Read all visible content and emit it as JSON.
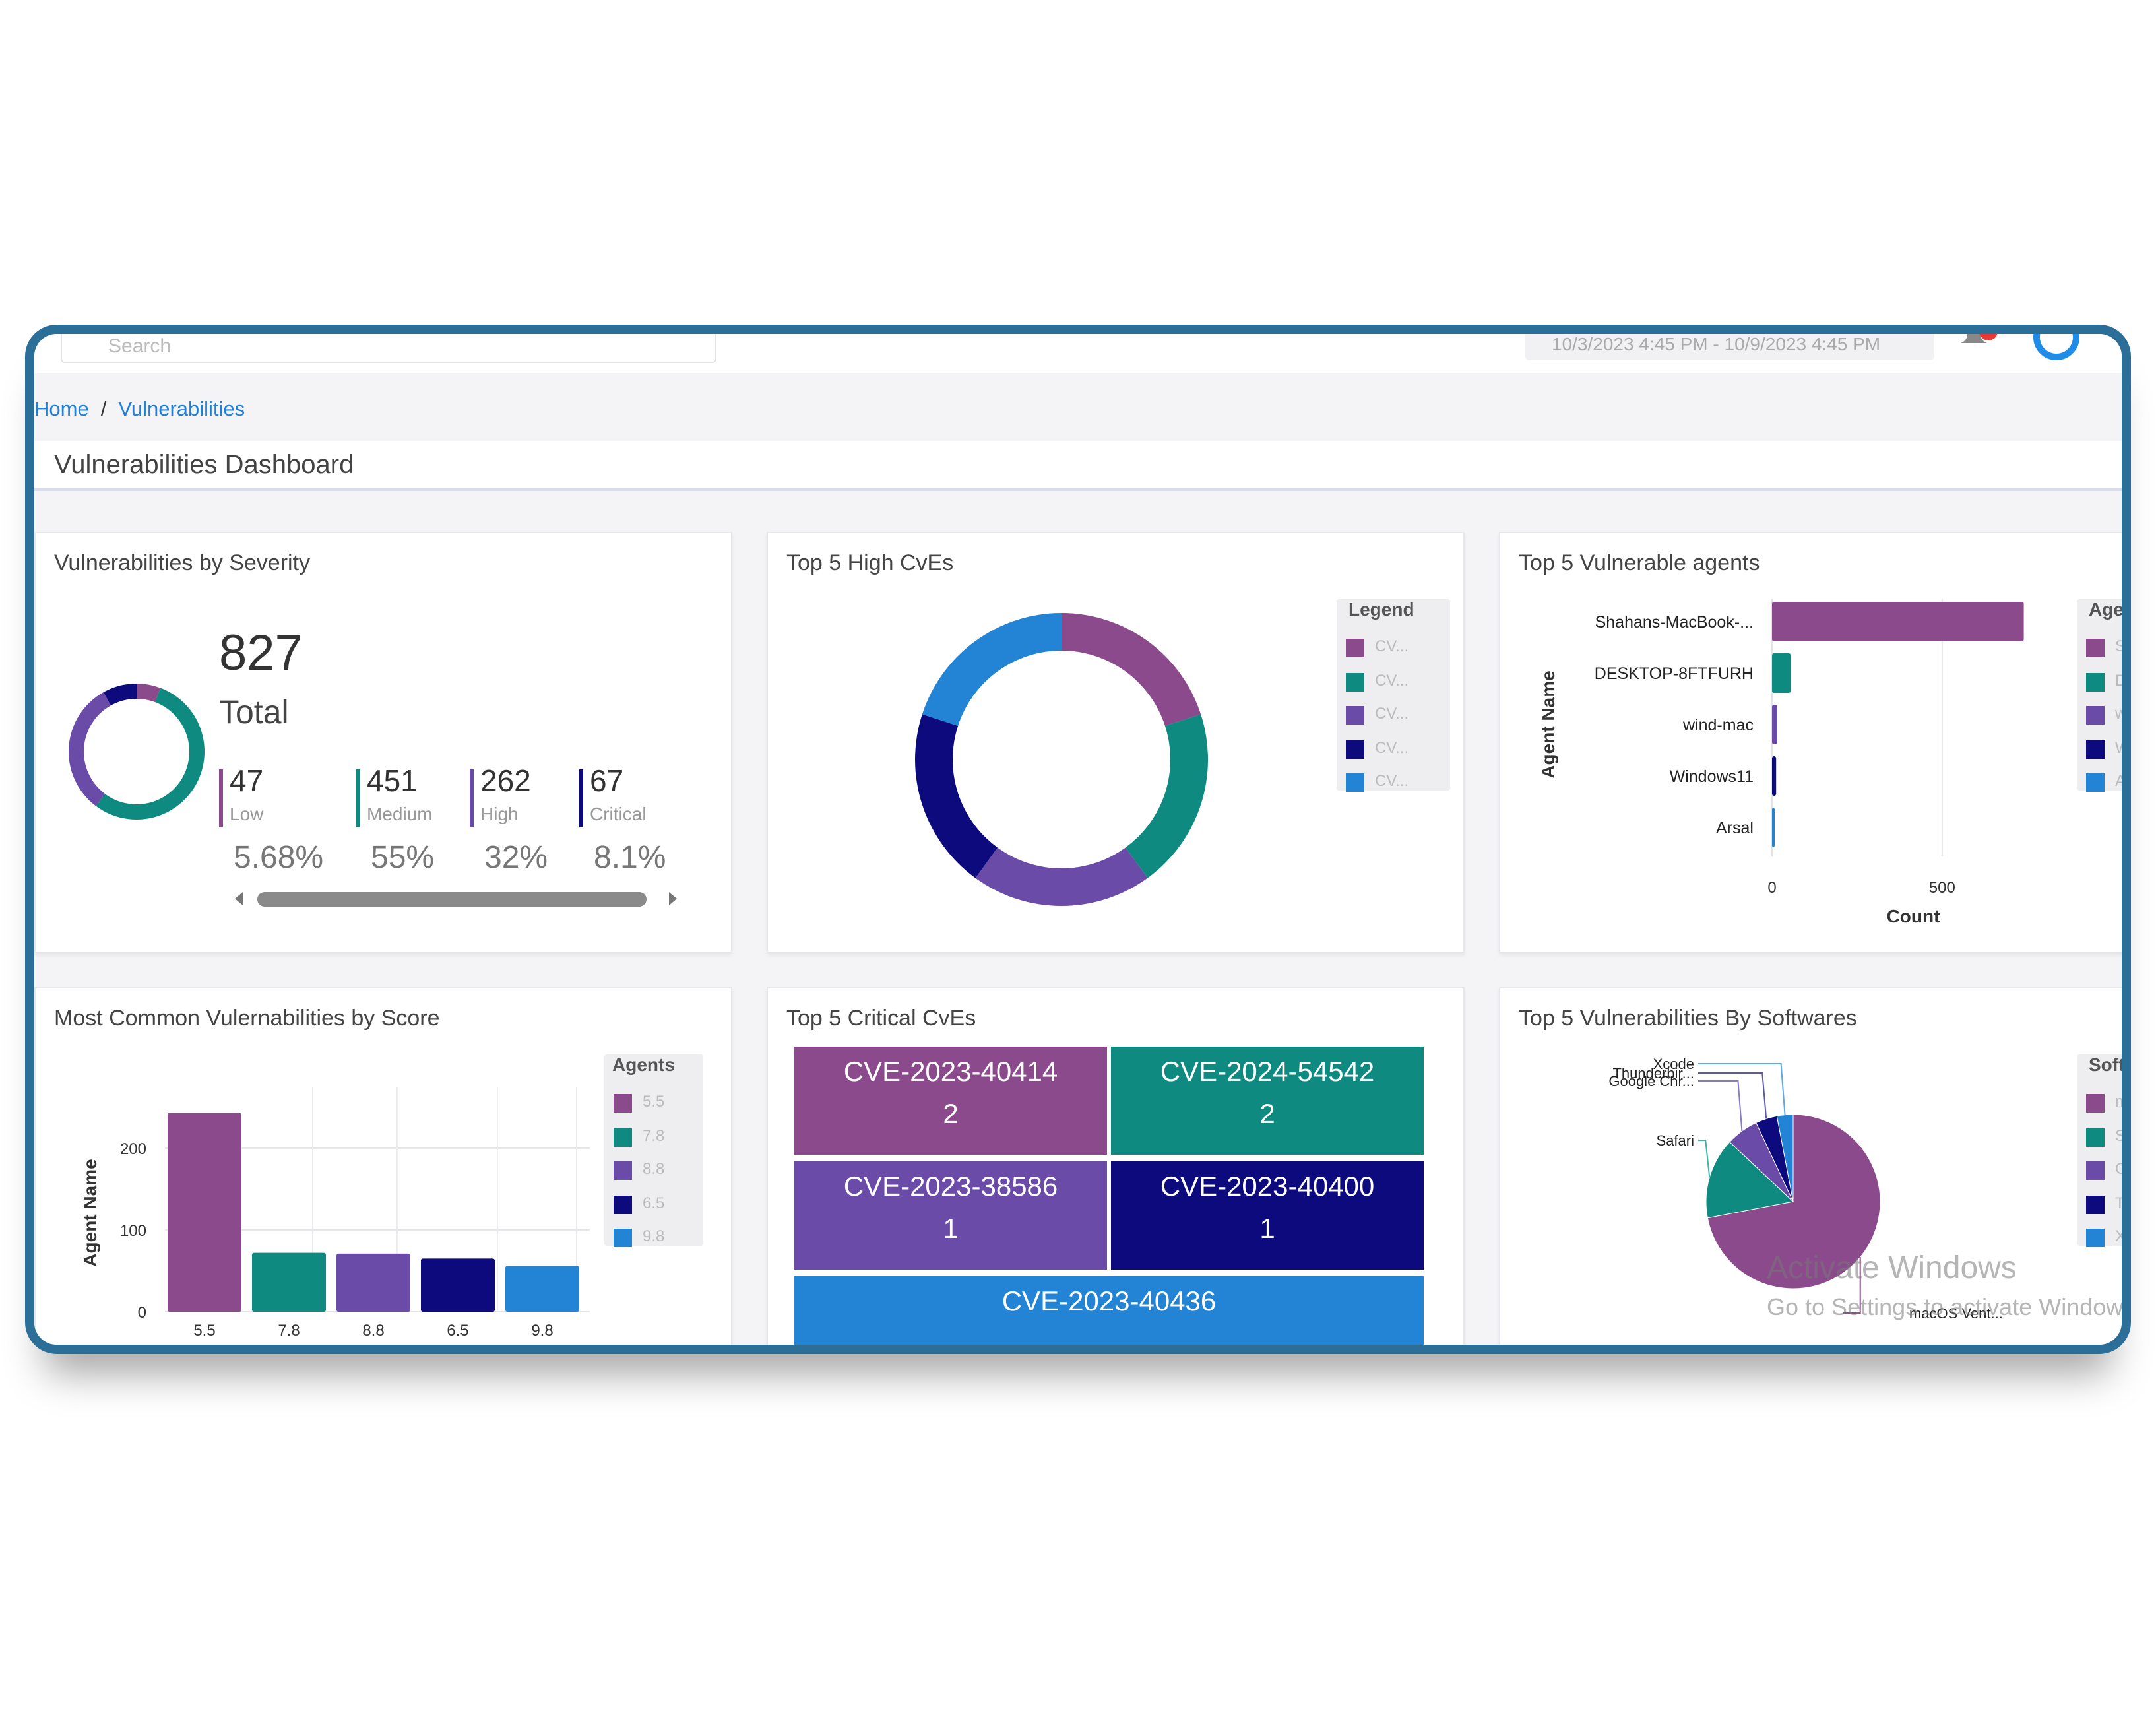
{
  "topbar": {
    "search_placeholder": "Search",
    "date_range": "10/3/2023 4:45 PM - 10/9/2023 4:45 PM"
  },
  "breadcrumb": {
    "home": "Home",
    "separator": "/",
    "current": "Vulnerabilities"
  },
  "page_title": "Vulnerabilities Dashboard",
  "colors": {
    "purple": "#8b4a8c",
    "teal": "#0f8a80",
    "violet": "#6b4ba8",
    "navy": "#0c0a7c",
    "blue": "#2384d5",
    "frame": "#2b6f98",
    "link": "#1f7fd8"
  },
  "severity_card": {
    "title": "Vulnerabilities by Severity",
    "total_value": "827",
    "total_label": "Total",
    "items": [
      {
        "value": "47",
        "label": "Low",
        "percent": "5.68%",
        "color": "#8b4a8c"
      },
      {
        "value": "451",
        "label": "Medium",
        "percent": "55%",
        "color": "#0f8a80"
      },
      {
        "value": "262",
        "label": "High",
        "percent": "32%",
        "color": "#6b4ba8"
      },
      {
        "value": "67",
        "label": "Critical",
        "percent": "8.1%",
        "color": "#0c0a7c"
      }
    ]
  },
  "high_cves_card": {
    "title": "Top 5 High CvEs",
    "legend_title": "Legend",
    "legend_items": [
      "CV...",
      "CV...",
      "CV...",
      "CV...",
      "CV..."
    ]
  },
  "agents_card": {
    "title": "Top 5 Vulnerable agents",
    "legend_title": "Agen",
    "legend_items": [
      "Sh",
      "DE",
      "win",
      "Wi",
      "Ars"
    ]
  },
  "score_card": {
    "title": "Most Common Vulernabilities by Score",
    "legend_title": "Agents",
    "legend_items": [
      "5.5",
      "7.8",
      "8.8",
      "6.5",
      "9.8"
    ]
  },
  "critical_card": {
    "title": "Top 5 Critical CvEs",
    "tiles": [
      {
        "cve": "CVE-2023-40414",
        "count": "2",
        "color": "#8b4a8c"
      },
      {
        "cve": "CVE-2024-54542",
        "count": "2",
        "color": "#0f8a80"
      },
      {
        "cve": "CVE-2023-38586",
        "count": "1",
        "color": "#6b4ba8"
      },
      {
        "cve": "CVE-2023-40400",
        "count": "1",
        "color": "#0c0a7c"
      },
      {
        "cve": "CVE-2023-40436",
        "count": "",
        "color": "#2384d5"
      }
    ]
  },
  "software_card": {
    "title": "Top 5 Vulnerabilities By Softwares",
    "legend_title": "Softw",
    "legend_items": [
      "ma",
      "Sa",
      "Go",
      "Th",
      "Xc"
    ],
    "labels": [
      "Xcode",
      "Thunderbir...",
      "Google Chr...",
      "Safari",
      "macOS Vent..."
    ]
  },
  "watermark": {
    "line1": "Activate Windows",
    "line2": "Go to Settings to activate Windows."
  },
  "chart_data": [
    {
      "type": "pie",
      "title": "Vulnerabilities by Severity",
      "categories": [
        "Low",
        "Medium",
        "High",
        "Critical"
      ],
      "values": [
        47,
        451,
        262,
        67
      ],
      "colors": [
        "#8b4a8c",
        "#0f8a80",
        "#6b4ba8",
        "#0c0a7c"
      ]
    },
    {
      "type": "pie",
      "title": "Top 5 High CvEs",
      "values": [
        1,
        1,
        1,
        1,
        1
      ],
      "colors": [
        "#8b4a8c",
        "#0f8a80",
        "#6b4ba8",
        "#0c0a7c",
        "#2384d5"
      ],
      "legend": "right"
    },
    {
      "type": "bar",
      "orientation": "horizontal",
      "title": "Top 5 Vulnerable agents",
      "categories": [
        "Shahans-MacBook-...",
        "DESKTOP-8FTFURH",
        "wind-mac",
        "Windows11",
        "Arsal"
      ],
      "values": [
        740,
        55,
        15,
        12,
        5
      ],
      "colors": [
        "#8b4a8c",
        "#0f8a80",
        "#6b4ba8",
        "#0c0a7c",
        "#2384d5"
      ],
      "xlabel": "Count",
      "ylabel": "Agent Name",
      "xticks": [
        "0",
        "500"
      ],
      "xlim": [
        0,
        830
      ]
    },
    {
      "type": "bar",
      "title": "Most Common Vulernabilities by Score",
      "categories": [
        "5.5",
        "7.8",
        "8.8",
        "6.5",
        "9.8"
      ],
      "category_labels_visible": [
        "5.5",
        "7.8",
        "8.8",
        "6.5",
        "9.8"
      ],
      "values": [
        243,
        72,
        71,
        65,
        56
      ],
      "colors": [
        "#8b4a8c",
        "#0f8a80",
        "#6b4ba8",
        "#0c0a7c",
        "#2384d5"
      ],
      "ylabel": "Agent Name",
      "yticks": [
        "0",
        "100",
        "200"
      ],
      "ylim": [
        0,
        245
      ]
    },
    {
      "type": "table",
      "title": "Top 5 Critical CvEs",
      "categories": [
        "CVE-2023-40414",
        "CVE-2024-54542",
        "CVE-2023-38586",
        "CVE-2023-40400",
        "CVE-2023-40436"
      ],
      "values": [
        2,
        2,
        1,
        1,
        null
      ]
    },
    {
      "type": "pie",
      "title": "Top 5 Vulnerabilities By Softwares",
      "categories": [
        "macOS Vent...",
        "Safari",
        "Google Chr...",
        "Thunderbir...",
        "Xcode"
      ],
      "values": [
        72,
        15,
        6,
        4,
        3
      ],
      "colors": [
        "#8b4a8c",
        "#0f8a80",
        "#6b4ba8",
        "#0c0a7c",
        "#2384d5"
      ]
    }
  ]
}
